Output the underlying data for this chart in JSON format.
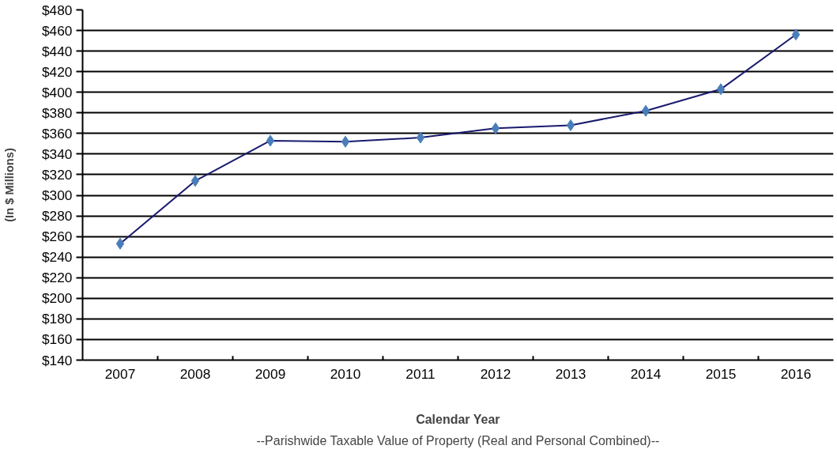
{
  "chart_data": {
    "type": "line",
    "categories": [
      "2007",
      "2008",
      "2009",
      "2010",
      "2011",
      "2012",
      "2013",
      "2014",
      "2015",
      "2016"
    ],
    "series": [
      {
        "color": "#4a7ebb",
        "values": [
          253,
          314,
          353,
          352,
          356,
          365,
          368,
          382,
          403,
          456
        ]
      }
    ],
    "ylim": [
      140,
      480
    ],
    "yticks": [
      {
        "value": 140,
        "label": "$140"
      },
      {
        "value": 160,
        "label": "$160"
      },
      {
        "value": 180,
        "label": "$180"
      },
      {
        "value": 200,
        "label": "$200"
      },
      {
        "value": 220,
        "label": "$220"
      },
      {
        "value": 240,
        "label": "$240"
      },
      {
        "value": 260,
        "label": "$260"
      },
      {
        "value": 280,
        "label": "$280"
      },
      {
        "value": 300,
        "label": "$300"
      },
      {
        "value": 320,
        "label": "$320"
      },
      {
        "value": 340,
        "label": "$340"
      },
      {
        "value": 360,
        "label": "$360"
      },
      {
        "value": 380,
        "label": "$380"
      },
      {
        "value": 400,
        "label": "$400"
      },
      {
        "value": 420,
        "label": "$420"
      },
      {
        "value": 440,
        "label": "$440"
      },
      {
        "value": 460,
        "label": "$460"
      },
      {
        "value": 480,
        "label": "$480"
      }
    ],
    "ylabel": "(In $ Millions)",
    "xlabel": "Calendar Year",
    "annotations": [
      "--Parishwide Taxable Value of Property (Real and Personal Combined)--"
    ],
    "grid": "y",
    "marker": "diamond",
    "line_style": "solid"
  }
}
